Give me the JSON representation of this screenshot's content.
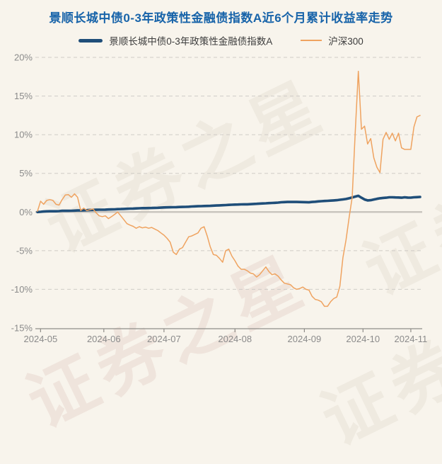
{
  "title": "景顺长城中债0-3年政策性金融债指数A近6个月累计收益率走势",
  "watermark": {
    "text": "证券之星"
  },
  "colors": {
    "background": "#f8f4ec",
    "title": "#1763a9",
    "fund_line": "#1f4e79",
    "csi_line": "#efa360",
    "grid": "#cfccc6",
    "zero_line": "#c6c2bb",
    "axis": "#8f8d88",
    "tick_label": "#8b8b8b"
  },
  "legend": [
    {
      "label": "景顺长城中债0-3年政策性金融债指数A",
      "color": "#1f4e79"
    },
    {
      "label": "沪深300",
      "color": "#efa360"
    }
  ],
  "chart_data": {
    "type": "line",
    "title": "景顺长城中债0-3年政策性金融债指数A近6个月累计收益率走势",
    "x_unit": "trading-day index since 2024-05",
    "ylabel": "cumulative return %",
    "ylim": [
      -15,
      20
    ],
    "grid": "dashed horizontal gridlines, solid zero line",
    "legend_position": "top",
    "y_ticks": [
      {
        "label": "20%",
        "value": 20
      },
      {
        "label": "15%",
        "value": 15
      },
      {
        "label": "10%",
        "value": 10
      },
      {
        "label": "5%",
        "value": 5
      },
      {
        "label": "0%",
        "value": 0
      },
      {
        "label": "-5%",
        "value": -5
      },
      {
        "label": "-10%",
        "value": -10
      },
      {
        "label": "-15%",
        "value": -15
      }
    ],
    "x_ticks": [
      {
        "label": "2024-05",
        "day": 1
      },
      {
        "label": "2024-06",
        "day": 21.5
      },
      {
        "label": "2024-07",
        "day": 41
      },
      {
        "label": "2024-08",
        "day": 64
      },
      {
        "label": "2024-09",
        "day": 86.5
      },
      {
        "label": "2024-10",
        "day": 105.5
      },
      {
        "label": "2024-11",
        "day": 121
      }
    ],
    "max_day": 124,
    "series": [
      {
        "name": "景顺长城中债0-3年政策性金融债指数A",
        "color": "#1f4e79",
        "width": 3.6,
        "values": [
          0.0,
          0.03,
          0.06,
          0.09,
          0.1,
          0.1,
          0.1,
          0.12,
          0.15,
          0.15,
          0.15,
          0.16,
          0.18,
          0.2,
          0.2,
          0.22,
          0.24,
          0.26,
          0.27,
          0.29,
          0.3,
          0.3,
          0.31,
          0.33,
          0.34,
          0.35,
          0.37,
          0.38,
          0.4,
          0.42,
          0.44,
          0.45,
          0.47,
          0.48,
          0.5,
          0.5,
          0.51,
          0.52,
          0.54,
          0.55,
          0.57,
          0.59,
          0.6,
          0.61,
          0.62,
          0.63,
          0.65,
          0.66,
          0.67,
          0.69,
          0.71,
          0.73,
          0.75,
          0.76,
          0.78,
          0.79,
          0.8,
          0.82,
          0.84,
          0.86,
          0.88,
          0.9,
          0.92,
          0.94,
          0.96,
          0.97,
          0.99,
          1.0,
          1.0,
          1.02,
          1.04,
          1.06,
          1.09,
          1.11,
          1.13,
          1.15,
          1.17,
          1.19,
          1.22,
          1.26,
          1.28,
          1.3,
          1.3,
          1.3,
          1.3,
          1.29,
          1.28,
          1.27,
          1.25,
          1.3,
          1.33,
          1.37,
          1.4,
          1.43,
          1.45,
          1.47,
          1.5,
          1.53,
          1.58,
          1.63,
          1.68,
          1.78,
          1.88,
          2.0,
          2.1,
          1.85,
          1.62,
          1.5,
          1.53,
          1.62,
          1.7,
          1.78,
          1.82,
          1.85,
          1.9,
          1.9,
          1.89,
          1.88,
          1.85,
          1.9,
          1.87,
          1.86,
          1.9,
          1.92,
          1.95
        ]
      },
      {
        "name": "沪深300",
        "color": "#efa360",
        "width": 1.5,
        "values": [
          0.1,
          1.4,
          1.0,
          1.5,
          1.6,
          1.5,
          1.0,
          0.9,
          1.6,
          2.2,
          2.25,
          1.9,
          2.35,
          1.9,
          0.2,
          0.5,
          0.2,
          0.3,
          0.4,
          -0.1,
          -0.5,
          -0.6,
          -0.5,
          -0.85,
          -0.6,
          -0.3,
          0.0,
          -0.5,
          -1.0,
          -1.5,
          -1.7,
          -1.85,
          -2.1,
          -1.9,
          -2.05,
          -1.95,
          -2.1,
          -2.0,
          -2.2,
          -2.4,
          -2.7,
          -3.0,
          -3.4,
          -3.9,
          -5.2,
          -5.5,
          -4.8,
          -4.6,
          -3.9,
          -3.2,
          -3.1,
          -2.9,
          -2.7,
          -2.1,
          -1.9,
          -3.1,
          -4.5,
          -5.5,
          -5.6,
          -6.0,
          -6.5,
          -5.0,
          -4.8,
          -5.7,
          -6.3,
          -7.0,
          -7.4,
          -7.4,
          -7.6,
          -7.9,
          -8.0,
          -8.4,
          -8.1,
          -7.6,
          -7.1,
          -7.7,
          -8.1,
          -8.0,
          -8.3,
          -8.8,
          -9.2,
          -9.3,
          -9.4,
          -9.8,
          -10.0,
          -9.9,
          -9.7,
          -10.0,
          -10.1,
          -10.9,
          -11.3,
          -11.4,
          -11.6,
          -12.2,
          -12.2,
          -11.6,
          -11.2,
          -11.0,
          -9.6,
          -5.9,
          -3.6,
          -0.7,
          1.9,
          10.5,
          18.2,
          10.7,
          11.1,
          8.8,
          9.5,
          7.0,
          5.8,
          5.1,
          9.4,
          10.3,
          9.4,
          10.2,
          9.2,
          10.2,
          8.3,
          8.1,
          8.1,
          8.1,
          11.0,
          12.3,
          12.5
        ]
      }
    ]
  }
}
